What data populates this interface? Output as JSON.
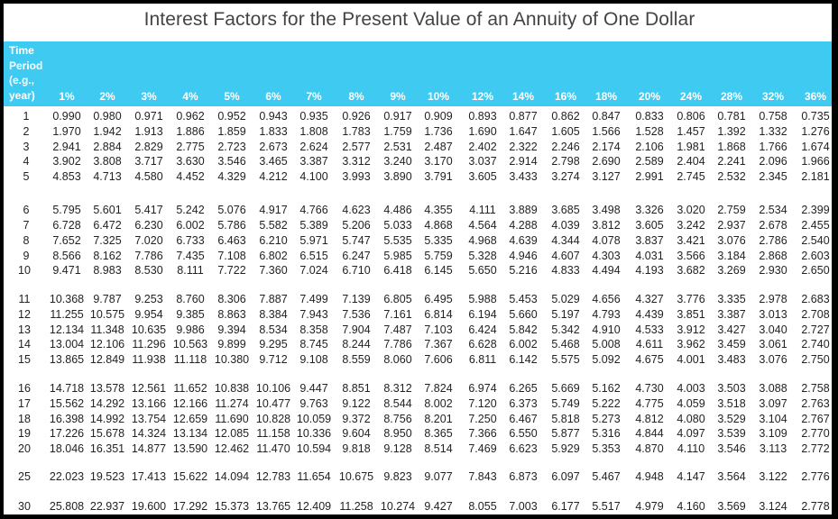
{
  "title": "Interest Factors for the Present Value of an Annuity of One Dollar",
  "header": {
    "period_label": "Time Period (e.g., year)",
    "period_lines": [
      "Time",
      "Period",
      "(e.g.,",
      "year)"
    ],
    "rates": [
      "1%",
      "2%",
      "3%",
      "4%",
      "5%",
      "6%",
      "7%",
      "8%",
      "9%",
      "10%",
      "12%",
      "14%",
      "16%",
      "18%",
      "20%",
      "24%",
      "28%",
      "32%",
      "36%"
    ]
  },
  "rows": [
    {
      "period": "1",
      "values": [
        "0.990",
        "0.980",
        "0.971",
        "0.962",
        "0.952",
        "0.943",
        "0.935",
        "0.926",
        "0.917",
        "0.909",
        "0.893",
        "0.877",
        "0.862",
        "0.847",
        "0.833",
        "0.806",
        "0.781",
        "0.758",
        "0.735"
      ]
    },
    {
      "period": "2",
      "values": [
        "1.970",
        "1.942",
        "1.913",
        "1.886",
        "1.859",
        "1.833",
        "1.808",
        "1.783",
        "1.759",
        "1.736",
        "1.690",
        "1.647",
        "1.605",
        "1.566",
        "1.528",
        "1.457",
        "1.392",
        "1.332",
        "1.276"
      ]
    },
    {
      "period": "3",
      "values": [
        "2.941",
        "2.884",
        "2.829",
        "2.775",
        "2.723",
        "2.673",
        "2.624",
        "2.577",
        "2.531",
        "2.487",
        "2.402",
        "2.322",
        "2.246",
        "2.174",
        "2.106",
        "1.981",
        "1.868",
        "1.766",
        "1.674"
      ]
    },
    {
      "period": "4",
      "values": [
        "3.902",
        "3.808",
        "3.717",
        "3.630",
        "3.546",
        "3.465",
        "3.387",
        "3.312",
        "3.240",
        "3.170",
        "3.037",
        "2.914",
        "2.798",
        "2.690",
        "2.589",
        "2.404",
        "2.241",
        "2.096",
        "1.966"
      ]
    },
    {
      "period": "5",
      "values": [
        "4.853",
        "4.713",
        "4.580",
        "4.452",
        "4.329",
        "4.212",
        "4.100",
        "3.993",
        "3.890",
        "3.791",
        "3.605",
        "3.433",
        "3.274",
        "3.127",
        "2.991",
        "2.745",
        "2.532",
        "2.345",
        "2.181"
      ]
    },
    {
      "period": "6",
      "values": [
        "5.795",
        "5.601",
        "5.417",
        "5.242",
        "5.076",
        "4.917",
        "4.766",
        "4.623",
        "4.486",
        "4.355",
        "4.111",
        "3.889",
        "3.685",
        "3.498",
        "3.326",
        "3.020",
        "2.759",
        "2.534",
        "2.399"
      ]
    },
    {
      "period": "7",
      "values": [
        "6.728",
        "6.472",
        "6.230",
        "6.002",
        "5.786",
        "5.582",
        "5.389",
        "5.206",
        "5.033",
        "4.868",
        "4.564",
        "4.288",
        "4.039",
        "3.812",
        "3.605",
        "3.242",
        "2.937",
        "2.678",
        "2.455"
      ]
    },
    {
      "period": "8",
      "values": [
        "7.652",
        "7.325",
        "7.020",
        "6.733",
        "6.463",
        "6.210",
        "5.971",
        "5.747",
        "5.535",
        "5.335",
        "4.968",
        "4.639",
        "4.344",
        "4.078",
        "3.837",
        "3.421",
        "3.076",
        "2.786",
        "2.540"
      ]
    },
    {
      "period": "9",
      "values": [
        "8.566",
        "8.162",
        "7.786",
        "7.435",
        "7.108",
        "6.802",
        "6.515",
        "6.247",
        "5.985",
        "5.759",
        "5.328",
        "4.946",
        "4.607",
        "4.303",
        "4.031",
        "3.566",
        "3.184",
        "2.868",
        "2.603"
      ]
    },
    {
      "period": "10",
      "values": [
        "9.471",
        "8.983",
        "8.530",
        "8.111",
        "7.722",
        "7.360",
        "7.024",
        "6.710",
        "6.418",
        "6.145",
        "5.650",
        "5.216",
        "4.833",
        "4.494",
        "4.193",
        "3.682",
        "3.269",
        "2.930",
        "2.650"
      ]
    },
    {
      "period": "11",
      "values": [
        "10.368",
        "9.787",
        "9.253",
        "8.760",
        "8.306",
        "7.887",
        "7.499",
        "7.139",
        "6.805",
        "6.495",
        "5.988",
        "5.453",
        "5.029",
        "4.656",
        "4.327",
        "3.776",
        "3.335",
        "2.978",
        "2.683"
      ]
    },
    {
      "period": "12",
      "values": [
        "11.255",
        "10.575",
        "9.954",
        "9.385",
        "8.863",
        "8.384",
        "7.943",
        "7.536",
        "7.161",
        "6.814",
        "6.194",
        "5.660",
        "5.197",
        "4.793",
        "4.439",
        "3.851",
        "3.387",
        "3.013",
        "2.708"
      ]
    },
    {
      "period": "13",
      "values": [
        "12.134",
        "11.348",
        "10.635",
        "9.986",
        "9.394",
        "8.534",
        "8.358",
        "7.904",
        "7.487",
        "7.103",
        "6.424",
        "5.842",
        "5.342",
        "4.910",
        "4.533",
        "3.912",
        "3.427",
        "3.040",
        "2.727"
      ]
    },
    {
      "period": "14",
      "values": [
        "13.004",
        "12.106",
        "11.296",
        "10.563",
        "9.899",
        "9.295",
        "8.745",
        "8.244",
        "7.786",
        "7.367",
        "6.628",
        "6.002",
        "5.468",
        "5.008",
        "4.611",
        "3.962",
        "3.459",
        "3.061",
        "2.740"
      ]
    },
    {
      "period": "15",
      "values": [
        "13.865",
        "12.849",
        "11.938",
        "11.118",
        "10.380",
        "9.712",
        "9.108",
        "8.559",
        "8.060",
        "7.606",
        "6.811",
        "6.142",
        "5.575",
        "5.092",
        "4.675",
        "4.001",
        "3.483",
        "3.076",
        "2.750"
      ]
    },
    {
      "period": "16",
      "values": [
        "14.718",
        "13.578",
        "12.561",
        "11.652",
        "10.838",
        "10.106",
        "9.447",
        "8.851",
        "8.312",
        "7.824",
        "6.974",
        "6.265",
        "5.669",
        "5.162",
        "4.730",
        "4.003",
        "3.503",
        "3.088",
        "2.758"
      ]
    },
    {
      "period": "17",
      "values": [
        "15.562",
        "14.292",
        "13.166",
        "12.166",
        "11.274",
        "10.477",
        "9.763",
        "9.122",
        "8.544",
        "8.002",
        "7.120",
        "6.373",
        "5.749",
        "5.222",
        "4.775",
        "4.059",
        "3.518",
        "3.097",
        "2.763"
      ]
    },
    {
      "period": "18",
      "values": [
        "16.398",
        "14.992",
        "13.754",
        "12.659",
        "11.690",
        "10.828",
        "10.059",
        "9.372",
        "8.756",
        "8.201",
        "7.250",
        "6.467",
        "5.818",
        "5.273",
        "4.812",
        "4.080",
        "3.529",
        "3.104",
        "2.767"
      ]
    },
    {
      "period": "19",
      "values": [
        "17.226",
        "15.678",
        "14.324",
        "13.134",
        "12.085",
        "11.158",
        "10.336",
        "9.604",
        "8.950",
        "8.365",
        "7.366",
        "6.550",
        "5.877",
        "5.316",
        "4.844",
        "4.097",
        "3.539",
        "3.109",
        "2.770"
      ]
    },
    {
      "period": "20",
      "values": [
        "18.046",
        "16.351",
        "14.877",
        "13.590",
        "12.462",
        "11.470",
        "10.594",
        "9.818",
        "9.128",
        "8.514",
        "7.469",
        "6.623",
        "5.929",
        "5.353",
        "4.870",
        "4.110",
        "3.546",
        "3.113",
        "2.772"
      ]
    },
    {
      "period": "25",
      "values": [
        "22.023",
        "19.523",
        "17.413",
        "15.622",
        "14.094",
        "12.783",
        "11.654",
        "10.675",
        "9.823",
        "9.077",
        "7.843",
        "6.873",
        "6.097",
        "5.467",
        "4.948",
        "4.147",
        "3.564",
        "3.122",
        "2.776"
      ]
    },
    {
      "period": "30",
      "values": [
        "25.808",
        "22.937",
        "19.600",
        "17.292",
        "15.373",
        "13.765",
        "12.409",
        "11.258",
        "10.274",
        "9.427",
        "8.055",
        "7.003",
        "6.177",
        "5.517",
        "4.979",
        "4.160",
        "3.569",
        "3.124",
        "2.778"
      ]
    }
  ]
}
